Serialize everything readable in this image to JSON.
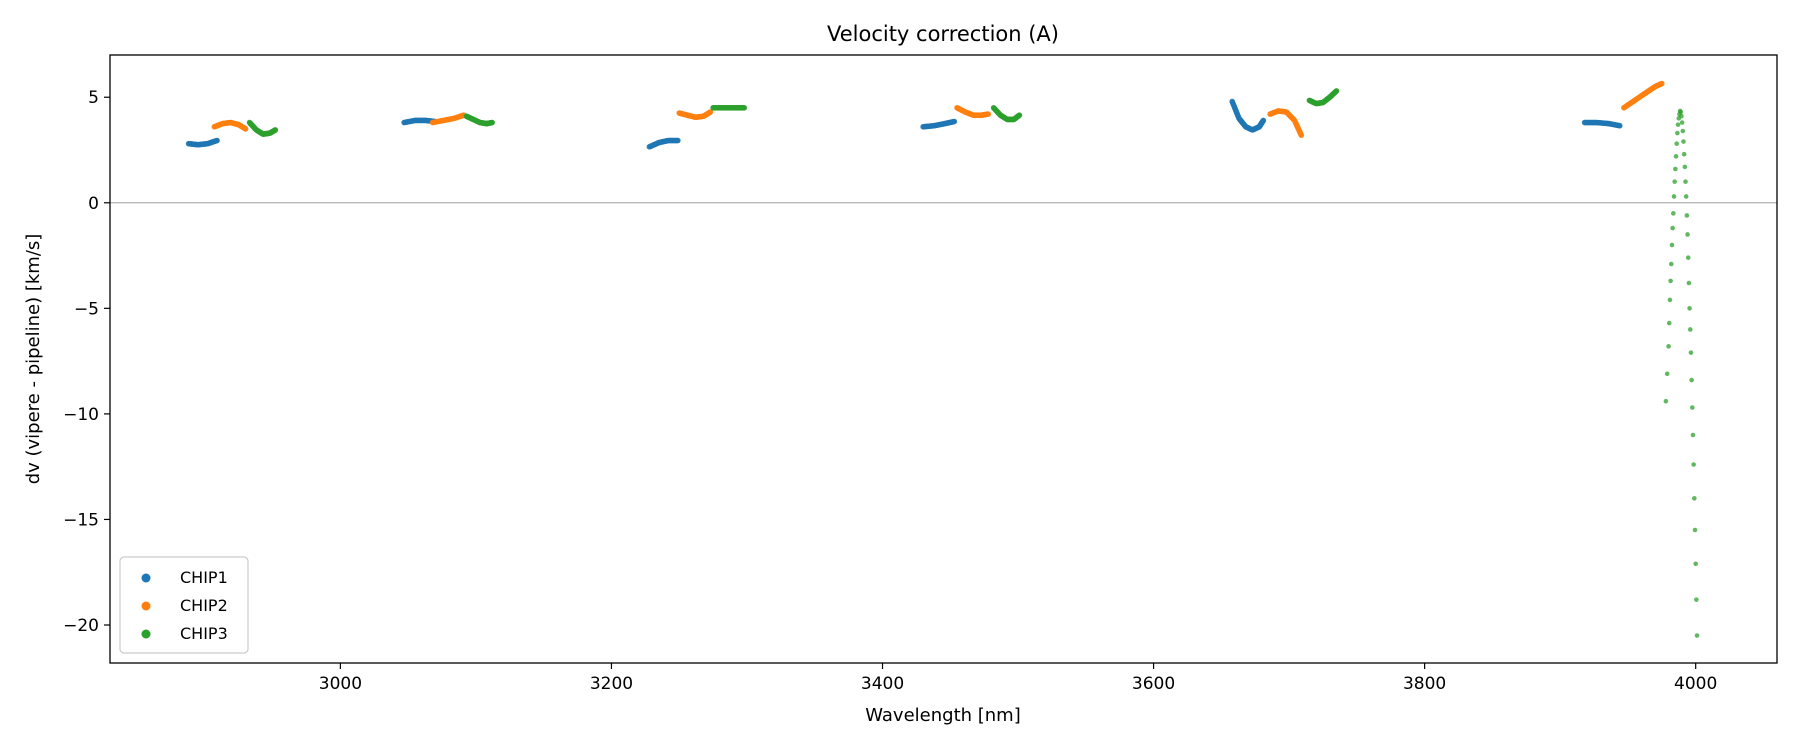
{
  "chart_data": {
    "type": "scatter",
    "title": "Velocity correction (A)",
    "xlabel": "Wavelength [nm]",
    "ylabel": "dv (vipere - pipeline) [km/s]",
    "xlim": [
      2830,
      4060
    ],
    "ylim": [
      -21.8,
      7.0
    ],
    "x_ticks": [
      3000,
      3200,
      3400,
      3600,
      3800,
      4000
    ],
    "y_ticks": [
      5,
      0,
      -5,
      -10,
      -15,
      -20
    ],
    "x_tick_labels": [
      "3000",
      "3200",
      "3400",
      "3600",
      "3800",
      "4000"
    ],
    "y_tick_labels": [
      "5",
      "0",
      "−5",
      "−10",
      "−15",
      "−20"
    ],
    "reference_line": 0,
    "grid": false,
    "legend_position": "lower-left",
    "series": [
      {
        "name": "CHIP1",
        "color": "#1f77b4",
        "segments": [
          [
            [
              2888,
              2.8
            ],
            [
              2895,
              2.75
            ],
            [
              2902,
              2.8
            ],
            [
              2909,
              2.95
            ]
          ],
          [
            [
              3047,
              3.8
            ],
            [
              3055,
              3.9
            ],
            [
              3063,
              3.9
            ],
            [
              3070,
              3.85
            ]
          ],
          [
            [
              3228,
              2.65
            ],
            [
              3235,
              2.85
            ],
            [
              3242,
              2.95
            ],
            [
              3249,
              2.95
            ]
          ],
          [
            [
              3430,
              3.6
            ],
            [
              3438,
              3.65
            ],
            [
              3446,
              3.75
            ],
            [
              3453,
              3.85
            ]
          ],
          [
            [
              3658,
              4.8
            ],
            [
              3663,
              4.0
            ],
            [
              3668,
              3.6
            ],
            [
              3673,
              3.45
            ],
            [
              3678,
              3.6
            ],
            [
              3681,
              3.9
            ]
          ],
          [
            [
              3918,
              3.8
            ],
            [
              3927,
              3.8
            ],
            [
              3936,
              3.75
            ],
            [
              3944,
              3.65
            ]
          ]
        ]
      },
      {
        "name": "CHIP2",
        "color": "#ff7f0e",
        "segments": [
          [
            [
              2907,
              3.6
            ],
            [
              2913,
              3.75
            ],
            [
              2919,
              3.8
            ],
            [
              2925,
              3.7
            ],
            [
              2930,
              3.5
            ]
          ],
          [
            [
              3068,
              3.8
            ],
            [
              3076,
              3.9
            ],
            [
              3084,
              4.0
            ],
            [
              3091,
              4.15
            ]
          ],
          [
            [
              3250,
              4.25
            ],
            [
              3256,
              4.15
            ],
            [
              3262,
              4.05
            ],
            [
              3268,
              4.1
            ],
            [
              3273,
              4.3
            ]
          ],
          [
            [
              3455,
              4.5
            ],
            [
              3461,
              4.3
            ],
            [
              3467,
              4.15
            ],
            [
              3473,
              4.15
            ],
            [
              3478,
              4.2
            ]
          ],
          [
            [
              3686,
              4.2
            ],
            [
              3692,
              4.35
            ],
            [
              3698,
              4.3
            ],
            [
              3704,
              3.9
            ],
            [
              3709,
              3.2
            ]
          ],
          [
            [
              3947,
              4.5
            ],
            [
              3955,
              4.85
            ],
            [
              3963,
              5.2
            ],
            [
              3970,
              5.5
            ],
            [
              3975,
              5.65
            ]
          ]
        ]
      },
      {
        "name": "CHIP3",
        "color": "#2ca02c",
        "segments": [
          [
            [
              2933,
              3.8
            ],
            [
              2938,
              3.45
            ],
            [
              2943,
              3.25
            ],
            [
              2948,
              3.3
            ],
            [
              2952,
              3.45
            ]
          ],
          [
            [
              3093,
              4.1
            ],
            [
              3098,
              3.95
            ],
            [
              3103,
              3.8
            ],
            [
              3108,
              3.75
            ],
            [
              3112,
              3.8
            ]
          ],
          [
            [
              3275,
              4.5
            ],
            [
              3283,
              4.5
            ],
            [
              3291,
              4.5
            ],
            [
              3298,
              4.5
            ]
          ],
          [
            [
              3482,
              4.5
            ],
            [
              3487,
              4.15
            ],
            [
              3492,
              3.95
            ],
            [
              3497,
              3.95
            ],
            [
              3501,
              4.15
            ]
          ],
          [
            [
              3715,
              4.85
            ],
            [
              3720,
              4.7
            ],
            [
              3725,
              4.75
            ],
            [
              3730,
              5.0
            ],
            [
              3735,
              5.3
            ]
          ],
          [
            [
              3978,
              -9.4
            ],
            [
              3979,
              -8.1
            ],
            [
              3980,
              -6.8
            ],
            [
              3980.5,
              -5.7
            ],
            [
              3981,
              -4.6
            ],
            [
              3981.5,
              -3.7
            ],
            [
              3982,
              -2.9
            ],
            [
              3982.5,
              -2.0
            ],
            [
              3983,
              -1.2
            ],
            [
              3983.5,
              -0.5
            ],
            [
              3984,
              0.3
            ],
            [
              3984.5,
              1.0
            ],
            [
              3985,
              1.6
            ],
            [
              3985.5,
              2.2
            ],
            [
              3986,
              2.8
            ],
            [
              3986.5,
              3.3
            ],
            [
              3987,
              3.7
            ],
            [
              3987.5,
              4.0
            ],
            [
              3988,
              4.2
            ],
            [
              3988.5,
              4.35
            ],
            [
              3989,
              4.3
            ],
            [
              3989.5,
              4.1
            ],
            [
              3990,
              3.8
            ],
            [
              3990.5,
              3.4
            ],
            [
              3991,
              2.9
            ],
            [
              3991.5,
              2.3
            ],
            [
              3992,
              1.7
            ],
            [
              3992.5,
              1.0
            ],
            [
              3993,
              0.3
            ],
            [
              3993.5,
              -0.6
            ],
            [
              3994,
              -1.5
            ],
            [
              3994.5,
              -2.6
            ],
            [
              3995,
              -3.8
            ],
            [
              3995.5,
              -5.0
            ],
            [
              3996,
              -6.0
            ],
            [
              3996.5,
              -7.1
            ],
            [
              3997,
              -8.4
            ],
            [
              3997.5,
              -9.7
            ],
            [
              3998,
              -11.0
            ],
            [
              3998.5,
              -12.4
            ],
            [
              3999,
              -14.0
            ],
            [
              3999.5,
              -15.5
            ],
            [
              4000,
              -17.1
            ],
            [
              4000.5,
              -18.8
            ],
            [
              4001,
              -20.5
            ]
          ]
        ]
      }
    ]
  }
}
